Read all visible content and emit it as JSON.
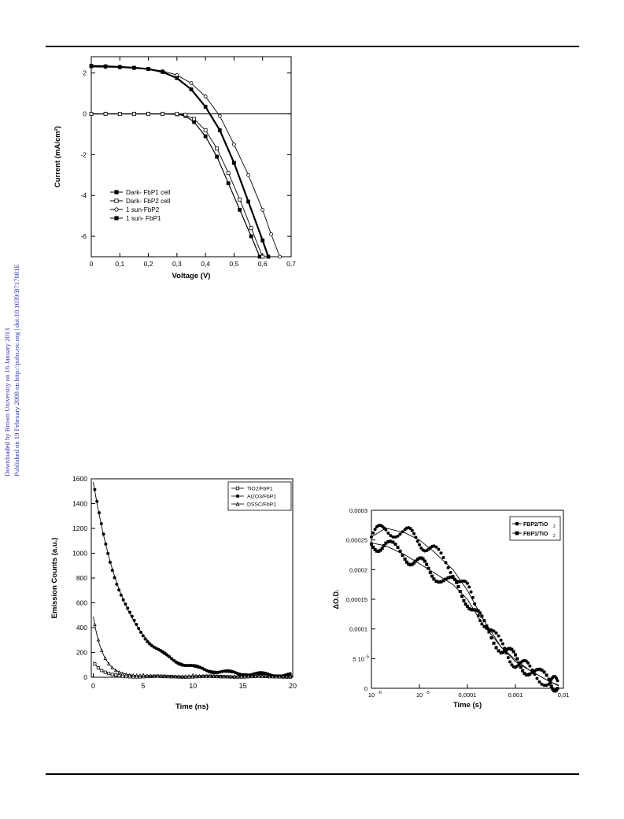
{
  "header": {},
  "side_note": {
    "line1": "Downloaded by Brown University on 16 January 2013",
    "line2": "Published on 19 February 2008 on http://pubs.rsc.org | doi:10.1039/B717081E",
    "color": "#3333aa"
  },
  "chart_data": [
    {
      "type": "line",
      "xlabel": "Voltage (V)",
      "ylabel": "Current (mA/cm²)",
      "xlim": [
        0,
        0.7
      ],
      "ylim": [
        -7,
        2.8
      ],
      "xticks": [
        "0",
        "0,1",
        "0,2",
        "0,3",
        "0,4",
        "0,5",
        "0,6",
        "0,7"
      ],
      "yticks": [
        "2",
        "0",
        "-2",
        "-4",
        "-6"
      ],
      "legend_position": "bottom-left",
      "series": [
        {
          "name": "Dark- FbP1 cell",
          "marker": "square-filled",
          "points": [
            [
              0,
              0
            ],
            [
              0.05,
              0
            ],
            [
              0.1,
              0
            ],
            [
              0.15,
              0
            ],
            [
              0.2,
              0
            ],
            [
              0.25,
              0
            ],
            [
              0.3,
              -0.02
            ],
            [
              0.33,
              -0.1
            ],
            [
              0.36,
              -0.4
            ],
            [
              0.4,
              -1.1
            ],
            [
              0.44,
              -2.1
            ],
            [
              0.48,
              -3.4
            ],
            [
              0.52,
              -4.7
            ],
            [
              0.56,
              -6.0
            ],
            [
              0.59,
              -7.0
            ]
          ]
        },
        {
          "name": "Dark- FbP2 cell",
          "marker": "square-open",
          "points": [
            [
              0,
              0
            ],
            [
              0.05,
              0
            ],
            [
              0.1,
              0
            ],
            [
              0.15,
              0
            ],
            [
              0.2,
              0
            ],
            [
              0.25,
              0
            ],
            [
              0.3,
              0
            ],
            [
              0.33,
              -0.05
            ],
            [
              0.36,
              -0.25
            ],
            [
              0.4,
              -0.8
            ],
            [
              0.44,
              -1.7
            ],
            [
              0.48,
              -2.9
            ],
            [
              0.52,
              -4.2
            ],
            [
              0.56,
              -5.6
            ],
            [
              0.6,
              -7.0
            ]
          ]
        },
        {
          "name": "1 sun-FbP2",
          "marker": "circle-open",
          "points": [
            [
              0,
              2.3
            ],
            [
              0.05,
              2.29
            ],
            [
              0.1,
              2.27
            ],
            [
              0.15,
              2.24
            ],
            [
              0.2,
              2.2
            ],
            [
              0.25,
              2.1
            ],
            [
              0.3,
              1.9
            ],
            [
              0.35,
              1.5
            ],
            [
              0.4,
              0.85
            ],
            [
              0.45,
              -0.1
            ],
            [
              0.5,
              -1.5
            ],
            [
              0.55,
              -3.0
            ],
            [
              0.6,
              -4.7
            ],
            [
              0.63,
              -5.9
            ],
            [
              0.66,
              -7.0
            ]
          ]
        },
        {
          "name": "1 sun- FbP1",
          "marker": "square-filled",
          "points": [
            [
              0,
              2.35
            ],
            [
              0.05,
              2.33
            ],
            [
              0.1,
              2.3
            ],
            [
              0.15,
              2.26
            ],
            [
              0.2,
              2.2
            ],
            [
              0.25,
              2.05
            ],
            [
              0.3,
              1.75
            ],
            [
              0.35,
              1.2
            ],
            [
              0.4,
              0.35
            ],
            [
              0.45,
              -0.8
            ],
            [
              0.5,
              -2.4
            ],
            [
              0.55,
              -4.3
            ],
            [
              0.6,
              -6.2
            ],
            [
              0.62,
              -7.0
            ]
          ]
        }
      ]
    },
    {
      "type": "scatter",
      "xlabel": "Time (ns)",
      "ylabel": "Emission Counts (a.u.)",
      "xlim": [
        -0.2,
        20
      ],
      "ylim": [
        0,
        1600
      ],
      "xticks": [
        "0",
        "5",
        "10",
        "15",
        "20"
      ],
      "yticks": [
        "0",
        "200",
        "400",
        "600",
        "800",
        "1000",
        "1200",
        "1400",
        "1600"
      ],
      "legend_position": "top-right",
      "series": [
        {
          "name": "TiO2/FbP1",
          "marker": "square-open",
          "amplitude": 120,
          "tau_ns": 0.9,
          "baseline": 5
        },
        {
          "name": "Al2O3/FbP1",
          "marker": "circle-filled",
          "amplitude": 1560,
          "tau_ns": 3.2,
          "baseline": 15
        },
        {
          "name": "DSSC/FbP1",
          "marker": "triangle-open",
          "amplitude": 480,
          "tau_ns": 1.0,
          "baseline": 8
        }
      ]
    },
    {
      "type": "scatter",
      "xlabel": "Time (s)",
      "ylabel": "ΔO.D.",
      "xscale": "log",
      "xlim": [
        1e-06,
        0.01
      ],
      "ylim": [
        0,
        0.0003
      ],
      "xticks": [
        "10",
        "10",
        "0,0001",
        "0,001",
        "0,01"
      ],
      "xtick_exponents": [
        "-6",
        "-5",
        "",
        "",
        ""
      ],
      "yticks": [
        "0",
        "5 10",
        "0,0001",
        "0,00015",
        "0,0002",
        "0,00025",
        "0,0003"
      ],
      "ytick_exponents": [
        "",
        "-5",
        "",
        "",
        "",
        "",
        ""
      ],
      "legend_position": "top-right",
      "series": [
        {
          "name": "FBP2/TiO",
          "subscript": "2",
          "marker": "circle-filled",
          "points": [
            [
              1e-06,
              0.000255
            ],
            [
              2e-06,
              0.00027
            ],
            [
              5e-06,
              0.000262
            ],
            [
              1e-05,
              0.00025
            ],
            [
              2e-05,
              0.00023
            ],
            [
              5e-05,
              0.0002
            ],
            [
              0.0001,
              0.000165
            ],
            [
              0.0002,
              0.00012
            ],
            [
              0.0005,
              7e-05
            ],
            [
              0.001,
              4.5e-05
            ],
            [
              0.002,
              3e-05
            ],
            [
              0.005,
              1.2e-05
            ],
            [
              0.008,
              5e-06
            ]
          ]
        },
        {
          "name": "FBP1/TiO",
          "subscript": "2",
          "marker": "square-filled",
          "points": [
            [
              1e-06,
              0.000245
            ],
            [
              2e-06,
              0.00024
            ],
            [
              5e-06,
              0.000225
            ],
            [
              1e-05,
              0.00021
            ],
            [
              2e-05,
              0.000195
            ],
            [
              5e-05,
              0.000175
            ],
            [
              0.0001,
              0.00015
            ],
            [
              0.0002,
              0.00011
            ],
            [
              0.0005,
              7e-05
            ],
            [
              0.001,
              4.8e-05
            ],
            [
              0.002,
              3e-05
            ],
            [
              0.005,
              1.2e-05
            ],
            [
              0.008,
              4e-06
            ]
          ]
        }
      ]
    }
  ]
}
